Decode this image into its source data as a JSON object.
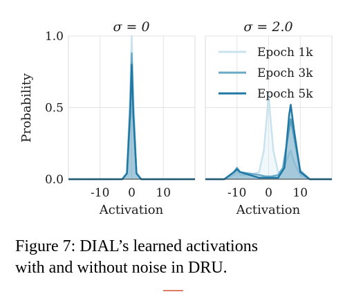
{
  "figure": {
    "caption_lines": [
      "Figure 7: DIAL’s learned activations",
      "with and without noise in DRU."
    ]
  },
  "chart_data": [
    {
      "type": "line",
      "title": "σ = 0",
      "xlabel": "Activation",
      "ylabel": "Probability",
      "xlim": [
        -20,
        20
      ],
      "ylim": [
        0,
        1.0
      ],
      "xticks": [
        -10,
        0,
        10
      ],
      "xtick_labels": [
        "-10",
        "0",
        "10"
      ],
      "yticks": [
        0.0,
        0.5,
        1.0
      ],
      "ytick_labels": [
        "0.0",
        "0.5",
        "1.0"
      ],
      "grid": true,
      "series": [
        {
          "color": "#c9e3ee",
          "x": [
            -20,
            -3,
            -1.5,
            -0.5,
            0,
            0.5,
            1.5,
            3,
            20
          ],
          "y": [
            0,
            0,
            0.05,
            0.6,
            1.0,
            0.6,
            0.05,
            0,
            0
          ]
        },
        {
          "color": "#6aa8c6",
          "x": [
            -20,
            -3,
            -1.5,
            -0.5,
            0,
            0.5,
            1.5,
            3,
            20
          ],
          "y": [
            0,
            0,
            0.04,
            0.5,
            0.88,
            0.5,
            0.04,
            0,
            0
          ]
        },
        {
          "color": "#1f77a4",
          "x": [
            -20,
            -3,
            -1.5,
            -0.5,
            0,
            0.5,
            1.5,
            3,
            20
          ],
          "y": [
            0,
            0,
            0.04,
            0.45,
            0.8,
            0.45,
            0.04,
            0,
            0
          ]
        }
      ]
    },
    {
      "type": "line",
      "title": "σ = 2.0",
      "xlabel": "Activation",
      "xlim": [
        -20,
        20
      ],
      "ylim": [
        0,
        1.0
      ],
      "xticks": [
        -10,
        0,
        10
      ],
      "xtick_labels": [
        "-10",
        "0",
        "10"
      ],
      "yticks": [
        0.0,
        0.5,
        1.0
      ],
      "grid": true,
      "legend": "top-right",
      "series": [
        {
          "name": "Epoch 1k",
          "color": "#c9e3ee",
          "x": [
            -20,
            -14,
            -11,
            -10,
            -9,
            -6,
            -3,
            -1.5,
            -0.5,
            0,
            0.5,
            1.5,
            3,
            4.5,
            6.5,
            7,
            8,
            10,
            13,
            20
          ],
          "y": [
            0,
            0,
            0.03,
            0.06,
            0.03,
            0.03,
            0.05,
            0.2,
            0.45,
            0.6,
            0.45,
            0.2,
            0.05,
            0.06,
            0.18,
            0.2,
            0.12,
            0.03,
            0,
            0
          ]
        },
        {
          "name": "Epoch 3k",
          "color": "#6aa8c6",
          "x": [
            -20,
            -14,
            -11,
            -10,
            -9,
            -6,
            -3,
            -1,
            0,
            1,
            3,
            4.5,
            6.5,
            7,
            8,
            10,
            13,
            20
          ],
          "y": [
            0,
            0,
            0.05,
            0.08,
            0.05,
            0.04,
            0.03,
            0.02,
            0.02,
            0.02,
            0.03,
            0.08,
            0.35,
            0.42,
            0.3,
            0.06,
            0,
            0
          ]
        },
        {
          "name": "Epoch 5k",
          "color": "#1f77a4",
          "x": [
            -20,
            -14,
            -11,
            -10,
            -9,
            -6,
            -3,
            -1,
            0,
            1,
            3,
            5,
            6.5,
            7,
            8,
            10,
            13,
            20
          ],
          "y": [
            0,
            0,
            0.05,
            0.07,
            0.05,
            0.03,
            0.01,
            0.01,
            0.01,
            0.01,
            0.01,
            0.08,
            0.45,
            0.52,
            0.35,
            0.05,
            0,
            0
          ]
        }
      ]
    }
  ]
}
